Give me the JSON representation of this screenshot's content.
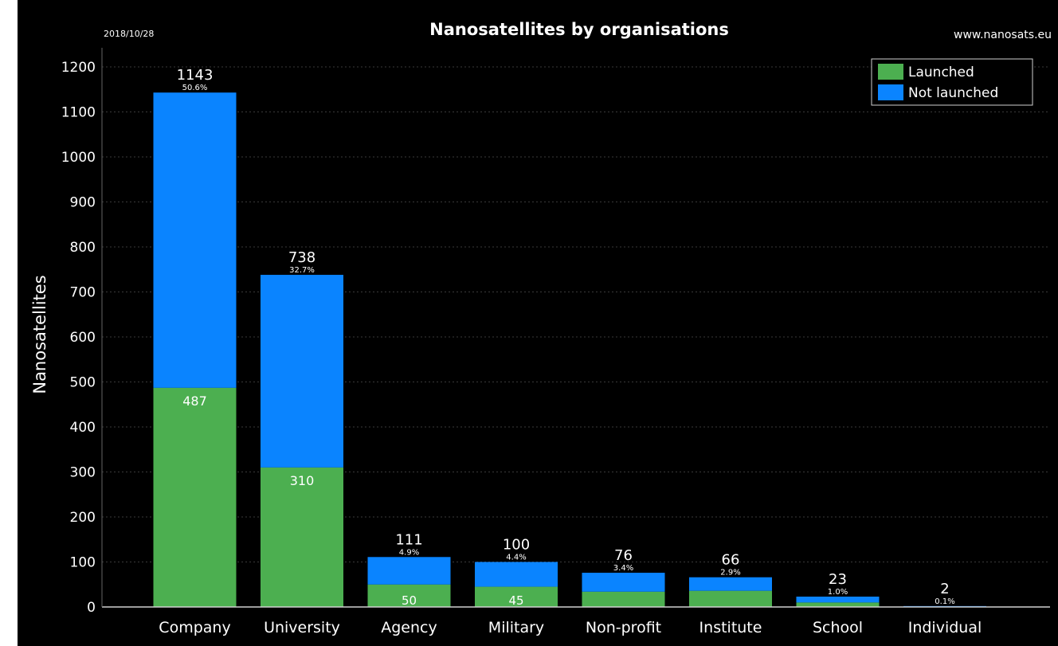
{
  "header": {
    "date": "2018/10/28",
    "title": "Nanosatellites by organisations",
    "website": "www.nanosats.eu"
  },
  "colors": {
    "background": "#000000",
    "launched": "#4caf50",
    "not_launched": "#0a84ff",
    "text": "#ffffff",
    "grid": "#3a3a3a"
  },
  "chart_data": {
    "type": "bar",
    "stacked": true,
    "title": "Nanosatellites by organisations",
    "xlabel": "",
    "ylabel": "Nanosatellites",
    "ylim": [
      0,
      1200
    ],
    "yticks": [
      0,
      100,
      200,
      300,
      400,
      500,
      600,
      700,
      800,
      900,
      1000,
      1100,
      1200
    ],
    "grid": true,
    "legend_position": "top-right",
    "categories": [
      "Company",
      "University",
      "Agency",
      "Military",
      "Non-profit",
      "Institute",
      "School",
      "Individual"
    ],
    "series": [
      {
        "name": "Launched",
        "values": [
          487,
          310,
          50,
          45,
          34,
          36,
          10,
          0
        ]
      },
      {
        "name": "Not launched",
        "values": [
          656,
          428,
          61,
          55,
          42,
          30,
          13,
          2
        ]
      }
    ],
    "totals": [
      1143,
      738,
      111,
      100,
      76,
      66,
      23,
      2
    ],
    "total_percent_labels": [
      "50.6%",
      "32.7%",
      "4.9%",
      "4.4%",
      "3.4%",
      "2.9%",
      "1.0%",
      "0.1%"
    ],
    "launched_labels": [
      "487",
      "310",
      "50",
      "45",
      "",
      "",
      "",
      ""
    ]
  }
}
